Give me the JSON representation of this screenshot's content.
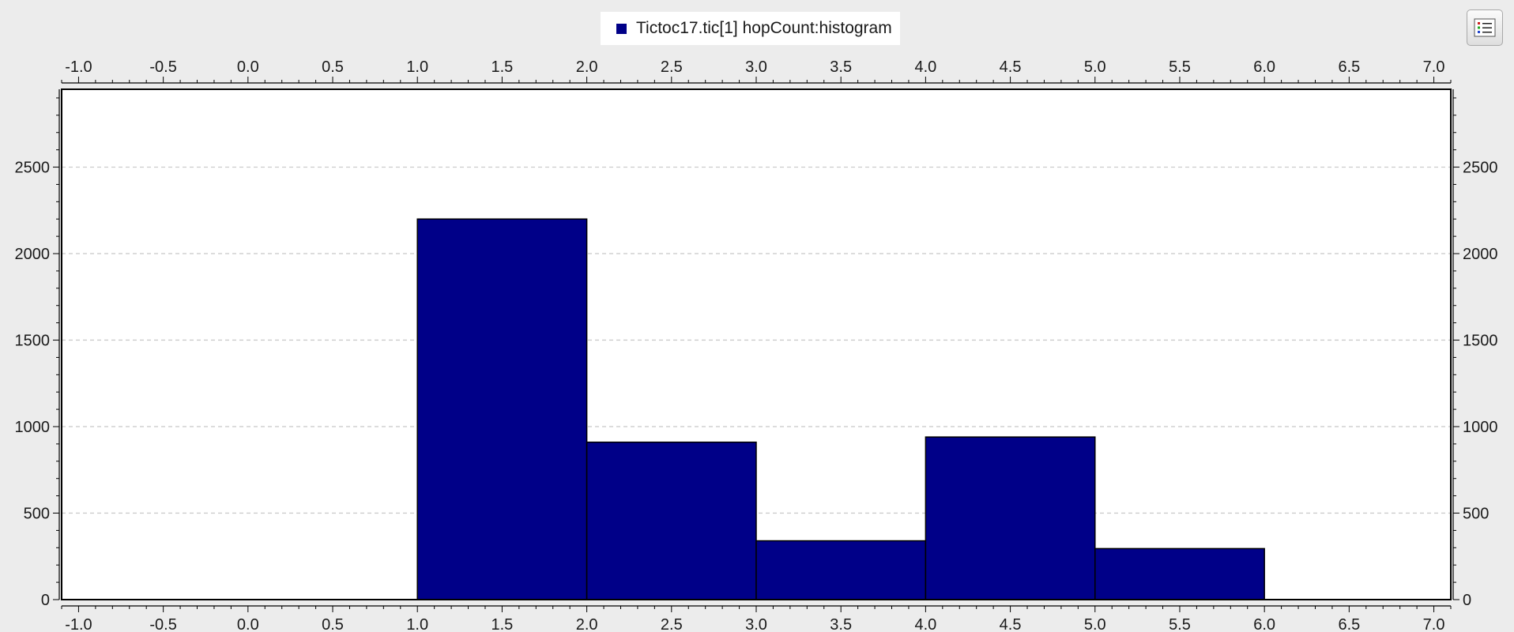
{
  "legend": {
    "label": "Tictoc17.tic[1] hopCount:histogram",
    "icon": "list-icon"
  },
  "chart_data": {
    "type": "bar",
    "title": "",
    "xlabel": "",
    "ylabel": "",
    "xlim": [
      -1.1,
      7.1
    ],
    "ylim": [
      0,
      2950
    ],
    "x_ticks": [
      -1.0,
      -0.5,
      0.0,
      0.5,
      1.0,
      1.5,
      2.0,
      2.5,
      3.0,
      3.5,
      4.0,
      4.5,
      5.0,
      5.5,
      6.0,
      6.5,
      7.0
    ],
    "x_tick_labels": [
      "-1.0",
      "-0.5",
      "0.0",
      "0.5",
      "1.0",
      "1.5",
      "2.0",
      "2.5",
      "3.0",
      "3.5",
      "4.0",
      "4.5",
      "5.0",
      "5.5",
      "6.0",
      "6.5",
      "7.0"
    ],
    "y_ticks": [
      0,
      500,
      1000,
      1500,
      2000,
      2500
    ],
    "y_tick_labels": [
      "0",
      "500",
      "1000",
      "1500",
      "2000",
      "2500"
    ],
    "grid": "horizontal dashed",
    "legend_position": "top-center",
    "series": [
      {
        "name": "Tictoc17.tic[1] hopCount:histogram",
        "color": "#000088",
        "bins": [
          {
            "start": 1,
            "end": 2,
            "value": 2200
          },
          {
            "start": 2,
            "end": 3,
            "value": 910
          },
          {
            "start": 3,
            "end": 4,
            "value": 340
          },
          {
            "start": 4,
            "end": 5,
            "value": 940
          },
          {
            "start": 5,
            "end": 6,
            "value": 295
          }
        ]
      }
    ]
  }
}
